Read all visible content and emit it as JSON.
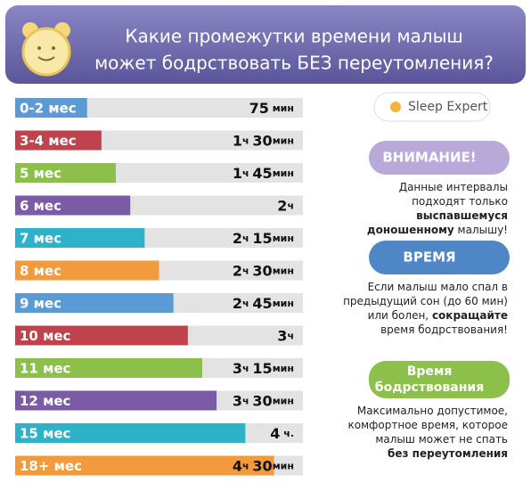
{
  "chart_data": {
    "type": "hbar",
    "title_lines": [
      "Какие промежутки времени малыш",
      "может бодрствовать БЕЗ переутомления?"
    ],
    "categories": [
      "0-2 мес",
      "3-4 мес",
      "5 мес",
      "6 мес",
      "7 мес",
      "8 мес",
      "9 мес",
      "10 мес",
      "11 мес",
      "12 мес",
      "15 мес",
      "18+ мес"
    ],
    "values": [
      75,
      90,
      105,
      120,
      135,
      150,
      165,
      180,
      195,
      210,
      240,
      270
    ],
    "value_labels": [
      "75 мин",
      "1ч 30мин",
      "1ч 45мин",
      "2ч",
      "2ч 15мин",
      "2ч 30мин",
      "2ч 45мин",
      "3ч",
      "3ч 15мин",
      "3ч 30мин",
      "4 ч.",
      "4ч 30мин"
    ],
    "colors": [
      "#5b9bd5",
      "#c0424c",
      "#8cc04a",
      "#7b5aa6",
      "#2eb2c9",
      "#f39a3c",
      "#5b9bd5",
      "#c0424c",
      "#8cc04a",
      "#7b5aa6",
      "#2eb2c9",
      "#f39a3c"
    ],
    "xlim": [
      0,
      300
    ],
    "track_color": "#e3e3e3"
  },
  "logo": "Sleep Expert",
  "panels": [
    {
      "heading": [
        "ВНИМАНИЕ!"
      ],
      "color": "#b9a9d8",
      "lines": [
        [
          {
            "text": "Данные интервалы",
            "bold": false
          }
        ],
        [
          {
            "text": "подходят только",
            "bold": false
          }
        ],
        [
          {
            "text": "выспавшемуся",
            "bold": true
          }
        ],
        [
          {
            "text": "доношенному",
            "bold": true
          },
          {
            "text": " малышу!",
            "bold": false
          }
        ]
      ]
    },
    {
      "heading": [
        "ВРЕМЯ"
      ],
      "color": "#4f86c6",
      "lines": [
        [
          {
            "text": "Если малыш  мало спал в",
            "bold": false
          }
        ],
        [
          {
            "text": "предыдущий сон (до 60 мин)",
            "bold": false
          }
        ],
        [
          {
            "text": "или болен, ",
            "bold": false
          },
          {
            "text": "сокращайте",
            "bold": true
          }
        ],
        [
          {
            "text": "время бодрствования!",
            "bold": false
          }
        ]
      ]
    },
    {
      "heading": [
        "Время",
        "бодрствования"
      ],
      "color": "#8cc04a",
      "lines": [
        [
          {
            "text": "Максимально допустимое,",
            "bold": false
          }
        ],
        [
          {
            "text": "комфортное  время, которое",
            "bold": false
          }
        ],
        [
          {
            "text": "малыш может не спать",
            "bold": false
          }
        ],
        [
          {
            "text": "без переутомления",
            "bold": true
          }
        ]
      ]
    }
  ]
}
